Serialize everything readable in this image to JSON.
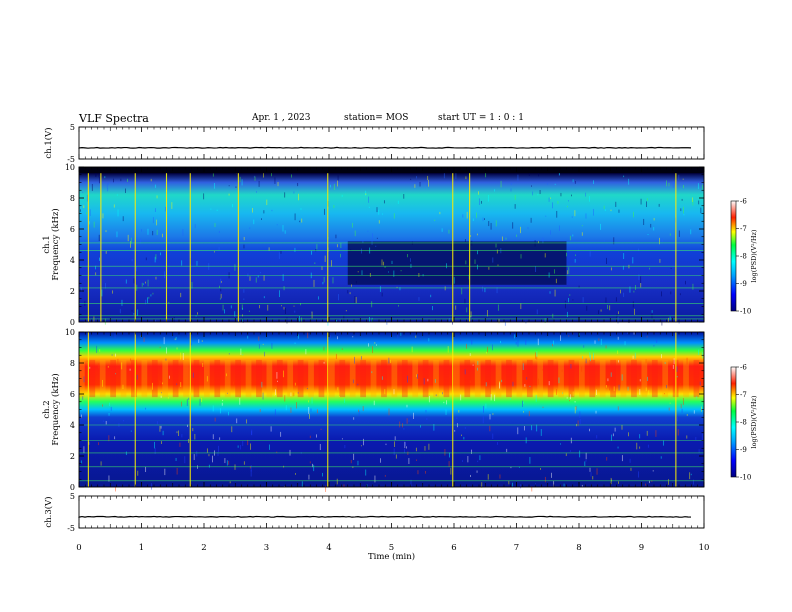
{
  "header": {
    "title": "VLF Spectra",
    "date": "Apr. 1 , 2023",
    "station": "station= MOS",
    "start_ut": "start UT =  1 : 0  : 1"
  },
  "chart_data": [
    {
      "type": "line",
      "name": "ch1-waveform",
      "ylabel": "ch.1(V)",
      "yticks": [
        "5",
        "-5"
      ],
      "ylim": [
        -5,
        5
      ],
      "xlim": [
        0,
        10
      ],
      "level": -1.5
    },
    {
      "type": "heatmap",
      "name": "ch1-spectrogram",
      "ylabel": "ch.1",
      "ylabel2": "Frequency (kHz)",
      "yticks": [
        "0",
        "2",
        "4",
        "6",
        "8",
        "10"
      ],
      "ylim": [
        0,
        10
      ],
      "xlim": [
        0,
        10
      ],
      "colorbar": {
        "label": "log(PSD)(V²/Hz)",
        "ticks": [
          "-6",
          "-7",
          "-8",
          "-9",
          "-10"
        ],
        "range": [
          -10,
          -6
        ]
      },
      "bright_vertical_lines_min": [
        0.15,
        0.35,
        0.9,
        1.4,
        1.78,
        2.55,
        3.98,
        5.98,
        6.25,
        9.55
      ],
      "quiet_interval_min": [
        4.3,
        7.8
      ]
    },
    {
      "type": "heatmap",
      "name": "ch2-spectrogram",
      "ylabel": "ch.2",
      "ylabel2": "Frequency (kHz)",
      "yticks": [
        "0",
        "2",
        "4",
        "6",
        "8",
        "10"
      ],
      "ylim": [
        0,
        10
      ],
      "xlim": [
        0,
        10
      ],
      "colorbar": {
        "label": "log(PSD)(V²/Hz)",
        "ticks": [
          "-6",
          "-7",
          "-8",
          "-9",
          "-10"
        ],
        "range": [
          -10,
          -6
        ]
      },
      "intense_band_khz": [
        5,
        8.5
      ],
      "bright_vertical_lines_min": [
        0.15,
        0.9,
        1.78,
        3.98,
        5.98,
        9.55
      ]
    },
    {
      "type": "line",
      "name": "ch3-waveform",
      "ylabel": "ch.3(V)",
      "yticks": [
        "5",
        "-5"
      ],
      "ylim": [
        -5,
        5
      ],
      "xlim": [
        0,
        10
      ],
      "level": -1.5
    }
  ],
  "xaxis": {
    "label": "Time  (min)",
    "ticks": [
      "0",
      "1",
      "2",
      "3",
      "4",
      "5",
      "6",
      "7",
      "8",
      "9",
      "10"
    ],
    "range": [
      0,
      10
    ]
  }
}
